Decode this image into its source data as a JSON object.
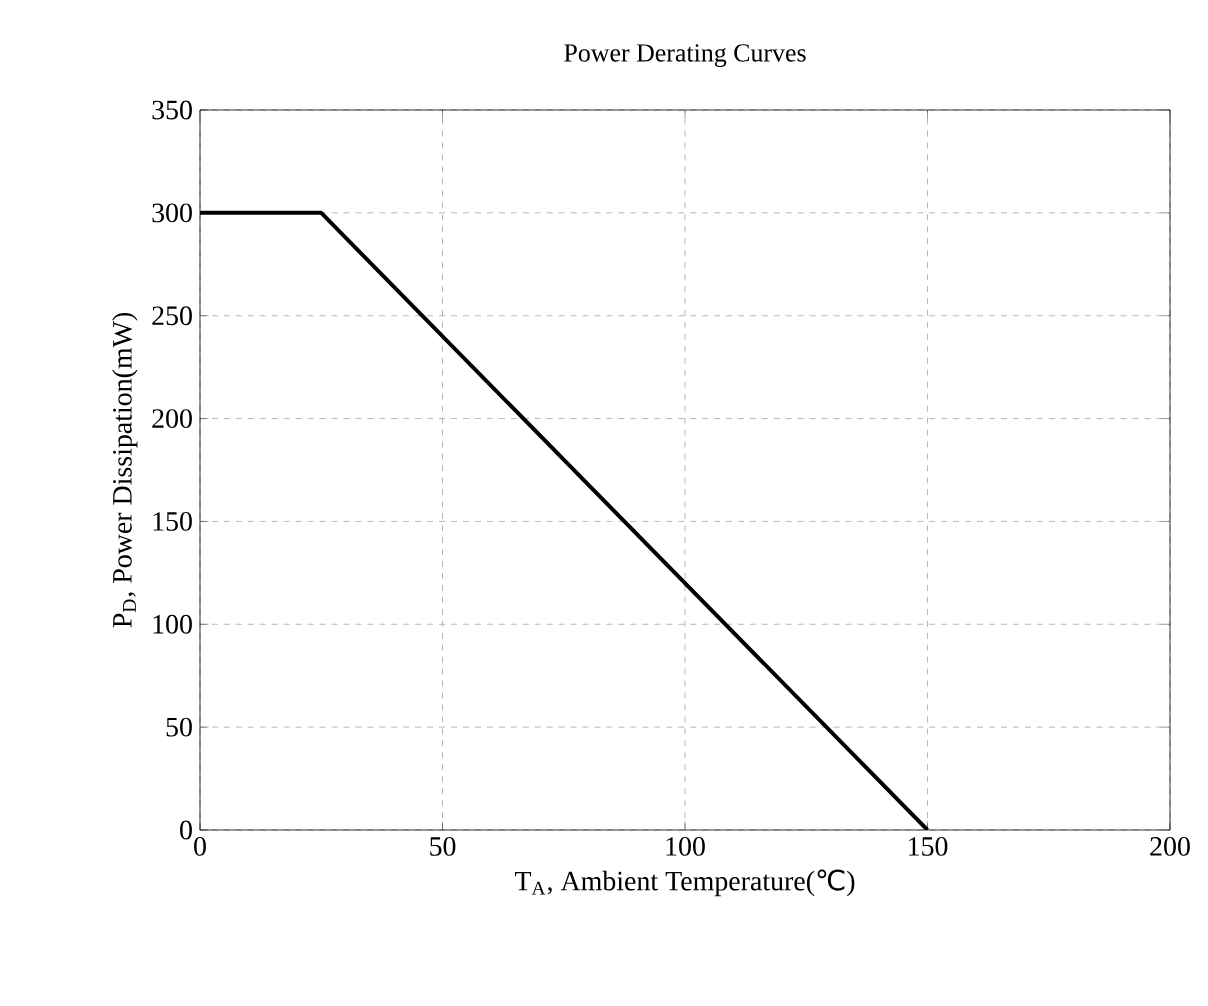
{
  "chart_data": {
    "type": "line",
    "title": "Power Derating Curves",
    "xlabel": "T$_{A}$, Ambient Temperature(℃)",
    "ylabel": "P$_{D}$, Power Dissipation(mW)",
    "x": [
      0,
      25,
      150
    ],
    "values": [
      300,
      300,
      0
    ],
    "color": "#000000",
    "xlim": [
      0,
      200
    ],
    "ylim": [
      0,
      350
    ],
    "xticks": [
      0,
      50,
      100,
      150,
      200
    ],
    "yticks": [
      0,
      50,
      100,
      150,
      200,
      250,
      300,
      350
    ],
    "grid": true,
    "marker": "none",
    "line_style": "solid"
  }
}
